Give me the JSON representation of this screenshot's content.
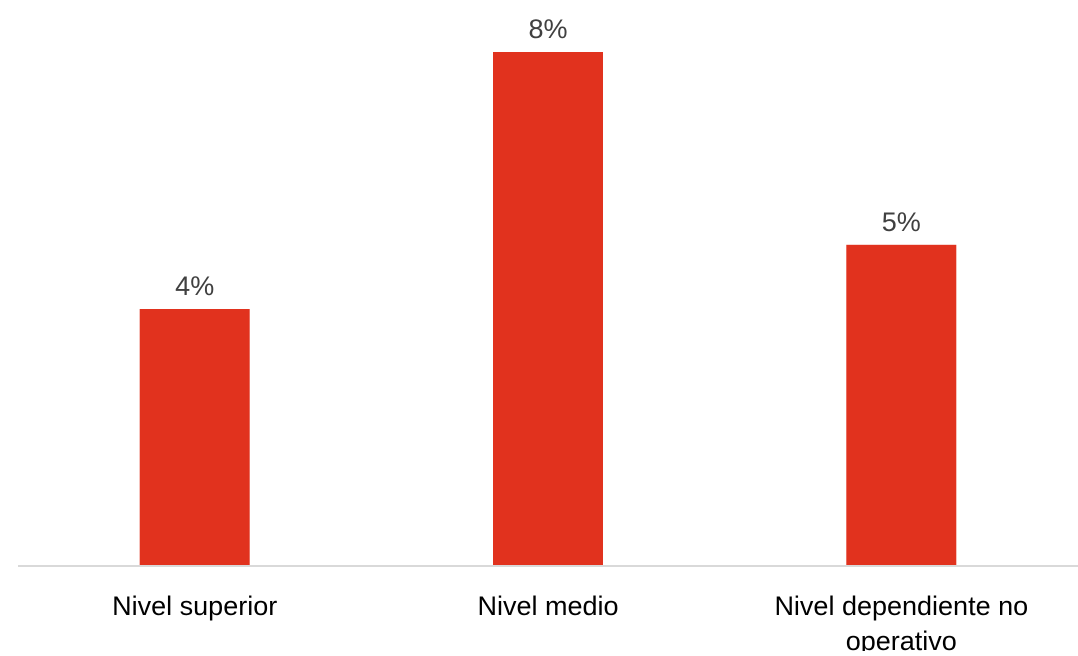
{
  "chart_data": {
    "type": "bar",
    "categories": [
      "Nivel superior",
      "Nivel medio",
      "Nivel dependiente no operativo"
    ],
    "category_label_lines": [
      [
        "Nivel superior"
      ],
      [
        "Nivel medio"
      ],
      [
        "Nivel dependiente no",
        "operativo"
      ]
    ],
    "values": [
      4,
      8,
      5
    ],
    "data_labels": [
      "4%",
      "8%",
      "5%"
    ],
    "unit": "%",
    "ylim": [
      0,
      8.4
    ],
    "grid": false,
    "legend": "none",
    "colors": {
      "bar": "#e1321e",
      "axis": "#d9d9d9",
      "data_label": "#404040",
      "category_label": "#000000"
    }
  }
}
